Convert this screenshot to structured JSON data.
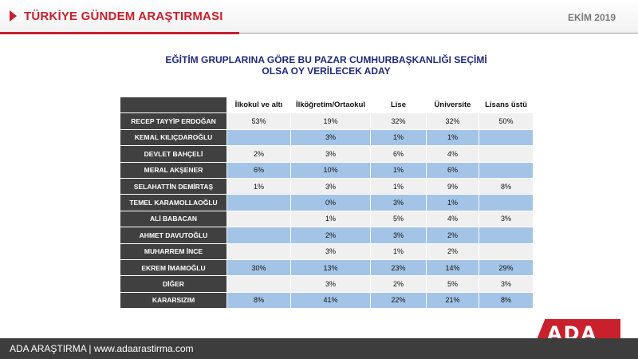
{
  "header": {
    "title": "TÜRKİYE GÜNDEM ARAŞTIRMASI",
    "date": "EKİM 2019"
  },
  "subtitle": {
    "line1": "EĞİTİM GRUPLARINA GÖRE BU PAZAR CUMHURBAŞKANLIĞI SEÇİMİ",
    "line2": "OLSA OY VERİLECEK ADAY"
  },
  "table": {
    "columns": [
      "İlkokul ve altı",
      "İlköğretim/Ortaokul",
      "Lise",
      "Üniversite",
      "Lisans üstü"
    ],
    "rows": [
      {
        "name": "RECEP TAYYİP ERDOĞAN",
        "values": [
          "53%",
          "19%",
          "32%",
          "32%",
          "50%"
        ]
      },
      {
        "name": "KEMAL KILIÇDAROĞLU",
        "values": [
          "",
          "3%",
          "1%",
          "1%",
          ""
        ]
      },
      {
        "name": "DEVLET BAHÇELİ",
        "values": [
          "2%",
          "3%",
          "6%",
          "4%",
          ""
        ]
      },
      {
        "name": "MERAL AKŞENER",
        "values": [
          "6%",
          "10%",
          "1%",
          "6%",
          ""
        ]
      },
      {
        "name": "SELAHATTİN DEMİRTAŞ",
        "values": [
          "1%",
          "3%",
          "1%",
          "9%",
          "8%"
        ]
      },
      {
        "name": "TEMEL KARAMOLLAOĞLU",
        "values": [
          "",
          "0%",
          "3%",
          "1%",
          ""
        ]
      },
      {
        "name": "ALİ BABACAN",
        "values": [
          "",
          "1%",
          "5%",
          "4%",
          "3%"
        ]
      },
      {
        "name": "AHMET DAVUTOĞLU",
        "values": [
          "",
          "2%",
          "3%",
          "2%",
          ""
        ]
      },
      {
        "name": "MUHARREM İNCE",
        "values": [
          "",
          "3%",
          "1%",
          "2%",
          ""
        ]
      },
      {
        "name": "EKREM İMAMOĞLU",
        "values": [
          "30%",
          "13%",
          "23%",
          "14%",
          "29%"
        ]
      },
      {
        "name": "DİĞER",
        "values": [
          "",
          "3%",
          "2%",
          "5%",
          "3%"
        ]
      },
      {
        "name": "KARARSIZIM",
        "values": [
          "8%",
          "41%",
          "22%",
          "21%",
          "8%"
        ]
      }
    ]
  },
  "footer": {
    "text": "ADA ARAŞTIRMA |  www.adaarastirma.com"
  },
  "logo": {
    "text": "ADA"
  },
  "colors": {
    "brand_red": "#c8202c",
    "header_cell": "#404040",
    "row_blue": "#a3c4e7",
    "row_gray": "#f0f0f0",
    "title_blue": "#1f2a7a"
  }
}
